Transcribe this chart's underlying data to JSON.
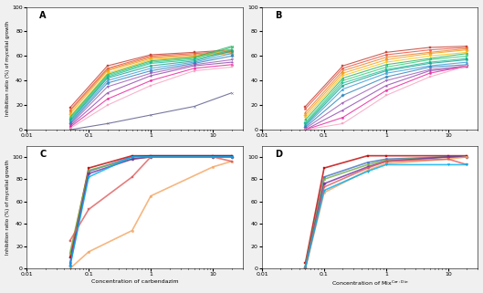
{
  "x_vals_AB": [
    0.05,
    0.2,
    1,
    5,
    20
  ],
  "x_vals_CD": [
    0.05,
    0.1,
    0.5,
    1,
    10,
    20
  ],
  "panel_A_lines": [
    {
      "y": [
        18,
        52,
        61,
        63,
        65
      ],
      "color": "#c0392b",
      "marker": "s",
      "lw": 0.8
    },
    {
      "y": [
        16,
        50,
        60,
        62,
        64
      ],
      "color": "#e74c3c",
      "marker": "o",
      "lw": 0.8
    },
    {
      "y": [
        15,
        49,
        59,
        61,
        63
      ],
      "color": "#e67e22",
      "marker": "^",
      "lw": 0.8
    },
    {
      "y": [
        13,
        48,
        58,
        60,
        62
      ],
      "color": "#f39c12",
      "marker": "D",
      "lw": 0.8
    },
    {
      "y": [
        11,
        46,
        57,
        59,
        65
      ],
      "color": "#f1c40f",
      "marker": "v",
      "lw": 0.8
    },
    {
      "y": [
        10,
        45,
        56,
        59,
        68
      ],
      "color": "#27ae60",
      "marker": "<",
      "lw": 0.8
    },
    {
      "y": [
        9,
        44,
        55,
        58,
        67
      ],
      "color": "#2ecc71",
      "marker": ">",
      "lw": 0.8
    },
    {
      "y": [
        8,
        43,
        54,
        57,
        65
      ],
      "color": "#1abc9c",
      "marker": "s",
      "lw": 0.8
    },
    {
      "y": [
        7,
        42,
        52,
        56,
        64
      ],
      "color": "#16a085",
      "marker": "o",
      "lw": 0.8
    },
    {
      "y": [
        6,
        40,
        50,
        55,
        62
      ],
      "color": "#3498db",
      "marker": "^",
      "lw": 0.8
    },
    {
      "y": [
        5,
        38,
        48,
        54,
        60
      ],
      "color": "#2980b9",
      "marker": "D",
      "lw": 0.8
    },
    {
      "y": [
        4,
        35,
        46,
        53,
        57
      ],
      "color": "#9b59b6",
      "marker": "v",
      "lw": 0.8
    },
    {
      "y": [
        3,
        30,
        44,
        52,
        55
      ],
      "color": "#8e44ad",
      "marker": "*",
      "lw": 0.8
    },
    {
      "y": [
        2,
        25,
        40,
        50,
        53
      ],
      "color": "#e91e9b",
      "marker": "h",
      "lw": 0.8
    },
    {
      "y": [
        1,
        20,
        36,
        48,
        51
      ],
      "color": "#f8a0c0",
      "marker": "s",
      "lw": 0.8
    },
    {
      "y": [
        0,
        5,
        12,
        19,
        30
      ],
      "color": "#555588",
      "marker": "x",
      "lw": 0.8
    }
  ],
  "panel_B_lines": [
    {
      "y": [
        19,
        52,
        63,
        67,
        68
      ],
      "color": "#c0392b",
      "marker": "s",
      "lw": 0.8
    },
    {
      "y": [
        17,
        50,
        61,
        65,
        67
      ],
      "color": "#e74c3c",
      "marker": "o",
      "lw": 0.8
    },
    {
      "y": [
        14,
        48,
        59,
        63,
        66
      ],
      "color": "#e67e22",
      "marker": "^",
      "lw": 0.8
    },
    {
      "y": [
        12,
        46,
        57,
        62,
        65
      ],
      "color": "#f39c12",
      "marker": "D",
      "lw": 0.8
    },
    {
      "y": [
        10,
        44,
        55,
        60,
        63
      ],
      "color": "#f1c40f",
      "marker": "v",
      "lw": 0.8
    },
    {
      "y": [
        8,
        42,
        53,
        58,
        62
      ],
      "color": "#27ae60",
      "marker": "<",
      "lw": 0.8
    },
    {
      "y": [
        6,
        40,
        51,
        57,
        60
      ],
      "color": "#2ecc71",
      "marker": ">",
      "lw": 0.8
    },
    {
      "y": [
        5,
        38,
        49,
        55,
        58
      ],
      "color": "#1abc9c",
      "marker": "s",
      "lw": 0.8
    },
    {
      "y": [
        4,
        36,
        48,
        54,
        57
      ],
      "color": "#16a085",
      "marker": "o",
      "lw": 0.8
    },
    {
      "y": [
        3,
        33,
        46,
        52,
        55
      ],
      "color": "#3498db",
      "marker": "^",
      "lw": 0.8
    },
    {
      "y": [
        2,
        28,
        43,
        51,
        53
      ],
      "color": "#2980b9",
      "marker": "D",
      "lw": 0.8
    },
    {
      "y": [
        1,
        22,
        40,
        49,
        52
      ],
      "color": "#9b59b6",
      "marker": "v",
      "lw": 0.8
    },
    {
      "y": [
        0,
        16,
        36,
        48,
        51
      ],
      "color": "#8e44ad",
      "marker": "*",
      "lw": 0.8
    },
    {
      "y": [
        0,
        10,
        32,
        46,
        52
      ],
      "color": "#e91e9b",
      "marker": "h",
      "lw": 0.8
    },
    {
      "y": [
        0,
        5,
        28,
        43,
        52
      ],
      "color": "#f8a0c0",
      "marker": "s",
      "lw": 0.8
    }
  ],
  "panel_C_lines": [
    {
      "y": [
        5,
        87,
        100,
        101,
        101,
        101
      ],
      "color": "#4472c4",
      "marker": "o",
      "lw": 1.2
    },
    {
      "y": [
        10,
        90,
        101,
        101,
        101,
        101
      ],
      "color": "#c00000",
      "marker": "s",
      "lw": 1.2
    },
    {
      "y": [
        14,
        88,
        98,
        100,
        100,
        100
      ],
      "color": "#70ad47",
      "marker": "^",
      "lw": 1.2
    },
    {
      "y": [
        3,
        85,
        98,
        100,
        100,
        100
      ],
      "color": "#7030a0",
      "marker": "D",
      "lw": 1.2
    },
    {
      "y": [
        0,
        15,
        34,
        65,
        91,
        96
      ],
      "color": "#f4a460",
      "marker": "o",
      "lw": 1.2
    },
    {
      "y": [
        25,
        53,
        82,
        100,
        100,
        96
      ],
      "color": "#e05c5c",
      "marker": "s",
      "lw": 1.2
    },
    {
      "y": [
        2,
        82,
        100,
        100,
        100,
        100
      ],
      "color": "#00b0f0",
      "marker": "v",
      "lw": 1.2
    }
  ],
  "panel_D_lines": [
    {
      "y": [
        2,
        82,
        95,
        98,
        100,
        100
      ],
      "color": "#4472c4",
      "marker": "o",
      "lw": 1.2
    },
    {
      "y": [
        5,
        90,
        101,
        101,
        101,
        101
      ],
      "color": "#c00000",
      "marker": "s",
      "lw": 1.2
    },
    {
      "y": [
        3,
        80,
        93,
        97,
        100,
        100
      ],
      "color": "#70ad47",
      "marker": "^",
      "lw": 1.2
    },
    {
      "y": [
        1,
        76,
        91,
        96,
        100,
        100
      ],
      "color": "#7030a0",
      "marker": "D",
      "lw": 1.2
    },
    {
      "y": [
        0,
        68,
        88,
        94,
        98,
        100
      ],
      "color": "#f4a460",
      "marker": "o",
      "lw": 1.2
    },
    {
      "y": [
        1,
        73,
        90,
        96,
        98,
        93
      ],
      "color": "#e05c5c",
      "marker": "s",
      "lw": 1.2
    },
    {
      "y": [
        1,
        70,
        87,
        93,
        93,
        93
      ],
      "color": "#00b0f0",
      "marker": "v",
      "lw": 1.2
    }
  ],
  "ylabel": "Inhibition ratio (%) of mycelial growth",
  "xlabel_C": "Concentration of carbendazim",
  "xlabel_D": "Concentration of Mix",
  "xlabel_D_super": "Car:Die",
  "xlim": [
    0.01,
    30
  ],
  "ylim_AB": [
    0,
    100
  ],
  "ylim_CD": [
    0,
    110
  ],
  "background_color": "#f0f0f0",
  "panel_bg": "#ffffff",
  "panel_labels": [
    "A",
    "B",
    "C",
    "D"
  ]
}
